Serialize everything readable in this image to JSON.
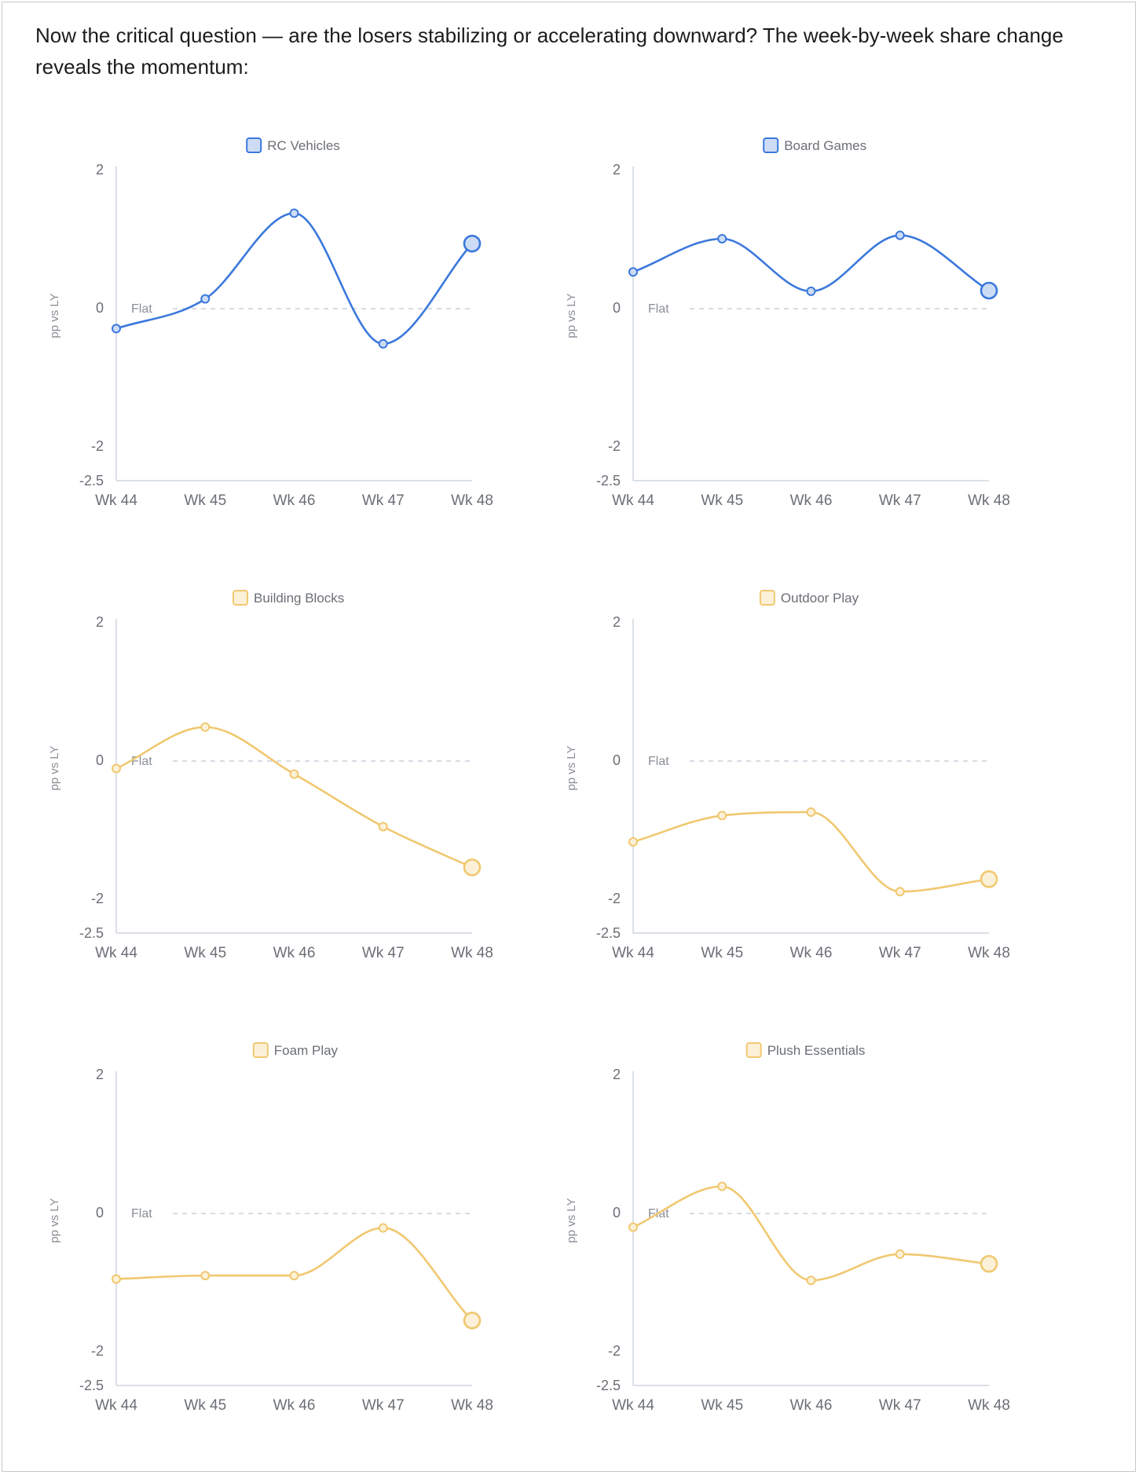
{
  "intro_text": "Now the critical question — are the losers stabilizing or accelerating downward? The week-by-week share change reveals the momentum:",
  "colors": {
    "up": "#3b78dc",
    "up_fill": "#cddcf5",
    "down": "#f0c870",
    "down_fill": "#fcf1d8",
    "axis": "#cfd6df",
    "ref": "#c8d0da"
  },
  "chart_data": [
    {
      "type": "line",
      "title": "",
      "legend": "RC Vehicles",
      "color_key": "up",
      "ylabel": "pp vs LY",
      "x": [
        "Wk 44",
        "Wk 45",
        "Wk 46",
        "Wk 47",
        "Wk 48"
      ],
      "values": [
        -0.3,
        0.13,
        1.37,
        -0.52,
        0.93
      ],
      "ylim": [
        -2.5,
        2
      ],
      "yticks": [
        "2",
        "0",
        "-2",
        "-2.5"
      ],
      "reference_line": {
        "value": 0,
        "label": "Flat"
      }
    },
    {
      "type": "line",
      "title": "",
      "legend": "Board Games",
      "color_key": "up",
      "ylabel": "pp vs LY",
      "x": [
        "Wk 44",
        "Wk 45",
        "Wk 46",
        "Wk 47",
        "Wk 48"
      ],
      "values": [
        0.52,
        1.0,
        0.24,
        1.05,
        0.25
      ],
      "ylim": [
        -2.5,
        2
      ],
      "yticks": [
        "2",
        "0",
        "-2",
        "-2.5"
      ],
      "reference_line": {
        "value": 0,
        "label": "Flat"
      }
    },
    {
      "type": "line",
      "title": "",
      "legend": "Building Blocks",
      "color_key": "down",
      "ylabel": "pp vs LY",
      "x": [
        "Wk 44",
        "Wk 45",
        "Wk 46",
        "Wk 47",
        "Wk 48"
      ],
      "values": [
        -0.12,
        0.48,
        -0.2,
        -0.96,
        -1.55
      ],
      "ylim": [
        -2.5,
        2
      ],
      "yticks": [
        "2",
        "0",
        "-2",
        "-2.5"
      ],
      "reference_line": {
        "value": 0,
        "label": "Flat"
      }
    },
    {
      "type": "line",
      "title": "",
      "legend": "Outdoor Play",
      "color_key": "down",
      "ylabel": "pp vs LY",
      "x": [
        "Wk 44",
        "Wk 45",
        "Wk 46",
        "Wk 47",
        "Wk 48"
      ],
      "values": [
        -1.18,
        -0.8,
        -0.75,
        -1.9,
        -1.72
      ],
      "ylim": [
        -2.5,
        2
      ],
      "yticks": [
        "2",
        "0",
        "-2",
        "-2.5"
      ],
      "reference_line": {
        "value": 0,
        "label": "Flat"
      }
    },
    {
      "type": "line",
      "title": "",
      "legend": "Foam Play",
      "color_key": "down",
      "ylabel": "pp vs LY",
      "x": [
        "Wk 44",
        "Wk 45",
        "Wk 46",
        "Wk 47",
        "Wk 48"
      ],
      "values": [
        -0.96,
        -0.91,
        -0.91,
        -0.22,
        -1.56
      ],
      "ylim": [
        -2.5,
        2
      ],
      "yticks": [
        "2",
        "0",
        "-2",
        "-2.5"
      ],
      "reference_line": {
        "value": 0,
        "label": "Flat"
      }
    },
    {
      "type": "line",
      "title": "",
      "legend": "Plush Essentials",
      "color_key": "down",
      "ylabel": "pp vs LY",
      "x": [
        "Wk 44",
        "Wk 45",
        "Wk 46",
        "Wk 47",
        "Wk 48"
      ],
      "values": [
        -0.21,
        0.38,
        -0.98,
        -0.6,
        -0.74
      ],
      "ylim": [
        -2.5,
        2
      ],
      "yticks": [
        "2",
        "0",
        "-2",
        "-2.5"
      ],
      "reference_line": {
        "value": 0,
        "label": "Flat"
      }
    }
  ]
}
